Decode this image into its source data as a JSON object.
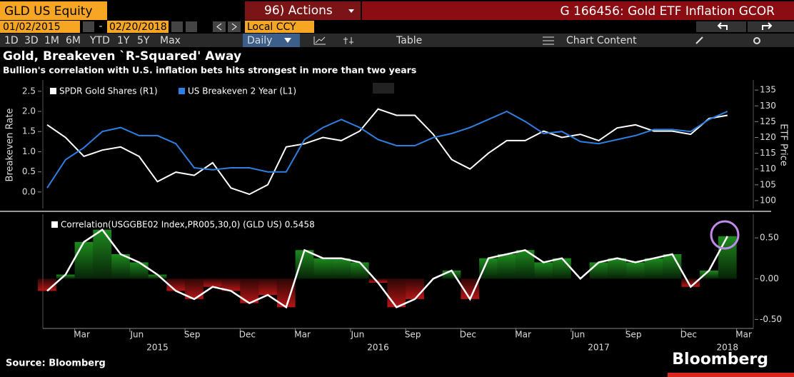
{
  "header": {
    "ticker": "GLD US Equity",
    "actions": "96) Actions",
    "function": "G 166456: Gold ETF Inflation GCOR",
    "start_date": "01/02/2015",
    "date_separator": "-",
    "end_date": "02/20/2018",
    "currency": "Local CCY",
    "ranges": [
      "1D",
      "3D",
      "1M",
      "6M",
      "YTD",
      "1Y",
      "5Y",
      "Max"
    ],
    "frequency": "Daily",
    "table": "Table",
    "chart_content": "Chart Content"
  },
  "chart_data": [
    {
      "type": "line",
      "title": "Gold, Breakeven `R-Squared' Away",
      "subtitle": "Bullion's correlation with U.S. inflation bets hits strongest in more than two years",
      "y_label": "Breakeven Rate",
      "y2_label": "ETF Price",
      "x": [
        "2015-01",
        "2015-02",
        "2015-03",
        "2015-04",
        "2015-05",
        "2015-06",
        "2015-07",
        "2015-08",
        "2015-09",
        "2015-10",
        "2015-11",
        "2015-12",
        "2016-01",
        "2016-02",
        "2016-03",
        "2016-04",
        "2016-05",
        "2016-06",
        "2016-07",
        "2016-08",
        "2016-09",
        "2016-10",
        "2016-11",
        "2016-12",
        "2017-01",
        "2017-02",
        "2017-03",
        "2017-04",
        "2017-05",
        "2017-06",
        "2017-07",
        "2017-08",
        "2017-09",
        "2017-10",
        "2017-11",
        "2017-12",
        "2018-01",
        "2018-02"
      ],
      "series": [
        {
          "name": "SPDR Gold Shares  (R1)",
          "color": "#ffffff",
          "axis": "y2",
          "values": [
            124,
            120,
            114,
            116,
            117,
            114,
            106,
            109,
            108,
            112,
            104,
            102,
            105,
            117,
            118,
            120,
            119,
            122,
            129,
            127,
            127,
            121,
            113,
            110,
            115,
            119,
            119,
            122,
            120,
            121,
            119,
            123,
            124,
            122,
            122,
            121,
            126,
            127
          ]
        },
        {
          "name": "US Breakeven 2 Year  (L1)",
          "color": "#2f7fe0",
          "values": [
            0.1,
            0.8,
            1.1,
            1.5,
            1.6,
            1.4,
            1.4,
            1.2,
            0.6,
            0.55,
            0.6,
            0.6,
            0.5,
            0.5,
            1.3,
            1.6,
            1.8,
            1.6,
            1.3,
            1.15,
            1.15,
            1.35,
            1.45,
            1.6,
            1.8,
            2.0,
            1.75,
            1.45,
            1.5,
            1.25,
            1.2,
            1.3,
            1.4,
            1.55,
            1.55,
            1.5,
            1.8,
            2.0
          ]
        }
      ],
      "ylim": [
        -0.41,
        2.78
      ],
      "yticks": [
        {
          "value": 0,
          "label": "0.0"
        },
        0.5,
        {
          "value": 1,
          "label": "1.0"
        },
        1.5,
        {
          "value": 2,
          "label": "2.0"
        },
        2.5
      ],
      "y2lim": [
        97.5,
        138.2
      ],
      "y2ticks": [
        100,
        105,
        110,
        115,
        120,
        125,
        130,
        135
      ]
    },
    {
      "type": "area",
      "x": [
        "2015-01",
        "2015-02",
        "2015-03",
        "2015-04",
        "2015-05",
        "2015-06",
        "2015-07",
        "2015-08",
        "2015-09",
        "2015-10",
        "2015-11",
        "2015-12",
        "2016-01",
        "2016-02",
        "2016-03",
        "2016-04",
        "2016-05",
        "2016-06",
        "2016-07",
        "2016-08",
        "2016-09",
        "2016-10",
        "2016-11",
        "2016-12",
        "2017-01",
        "2017-02",
        "2017-03",
        "2017-04",
        "2017-05",
        "2017-06",
        "2017-07",
        "2017-08",
        "2017-09",
        "2017-10",
        "2017-11",
        "2017-12",
        "2018-01",
        "2018-02"
      ],
      "series": [
        {
          "name": "Correlation(USGGBE02 Index,PR005,30,0) (GLD US) 0.5458",
          "color": "#ffffff",
          "values": [
            -0.15,
            0.05,
            0.45,
            0.6,
            0.3,
            0.2,
            0.05,
            -0.15,
            -0.25,
            -0.1,
            -0.15,
            -0.3,
            -0.2,
            -0.35,
            0.35,
            0.25,
            0.25,
            0.2,
            -0.05,
            -0.35,
            -0.25,
            0.0,
            0.1,
            -0.25,
            0.25,
            0.3,
            0.35,
            0.2,
            0.25,
            0.0,
            0.2,
            0.25,
            0.2,
            0.25,
            0.3,
            -0.1,
            0.1,
            0.52
          ]
        }
      ],
      "positive_color": "#1e8a1e",
      "negative_color": "#b41616",
      "ylim": [
        -0.61,
        0.79
      ],
      "yticks": [
        {
          "value": -0.5,
          "label": "-0.50"
        },
        {
          "value": 0,
          "label": "0.00"
        },
        {
          "value": 0.5,
          "label": "0.50"
        }
      ],
      "xticks": [
        {
          "value": "2015-03",
          "label": "Mar"
        },
        {
          "value": "2015-06",
          "label": "Jun"
        },
        {
          "value": "2015-09",
          "label": "Sep"
        },
        {
          "value": "2015-12",
          "label": "Dec"
        },
        {
          "value": "2016-03",
          "label": "Mar"
        },
        {
          "value": "2016-06",
          "label": "Jun"
        },
        {
          "value": "2016-09",
          "label": "Sep"
        },
        {
          "value": "2016-12",
          "label": "Dec"
        },
        {
          "value": "2017-03",
          "label": "Mar"
        },
        {
          "value": "2017-06",
          "label": "Jun"
        },
        {
          "value": "2017-09",
          "label": "Sep"
        },
        {
          "value": "2017-12",
          "label": "Dec"
        },
        {
          "value": "2018-03",
          "label": "Mar"
        }
      ],
      "year_labels": [
        {
          "value": "2015-07",
          "label": "2015"
        },
        {
          "value": "2016-07",
          "label": "2016"
        },
        {
          "value": "2017-07",
          "label": "2017"
        },
        {
          "value": "2018-02",
          "label": "2018"
        }
      ]
    }
  ],
  "footer": {
    "source": "Source: Bloomberg",
    "brand": "Bloomberg"
  }
}
